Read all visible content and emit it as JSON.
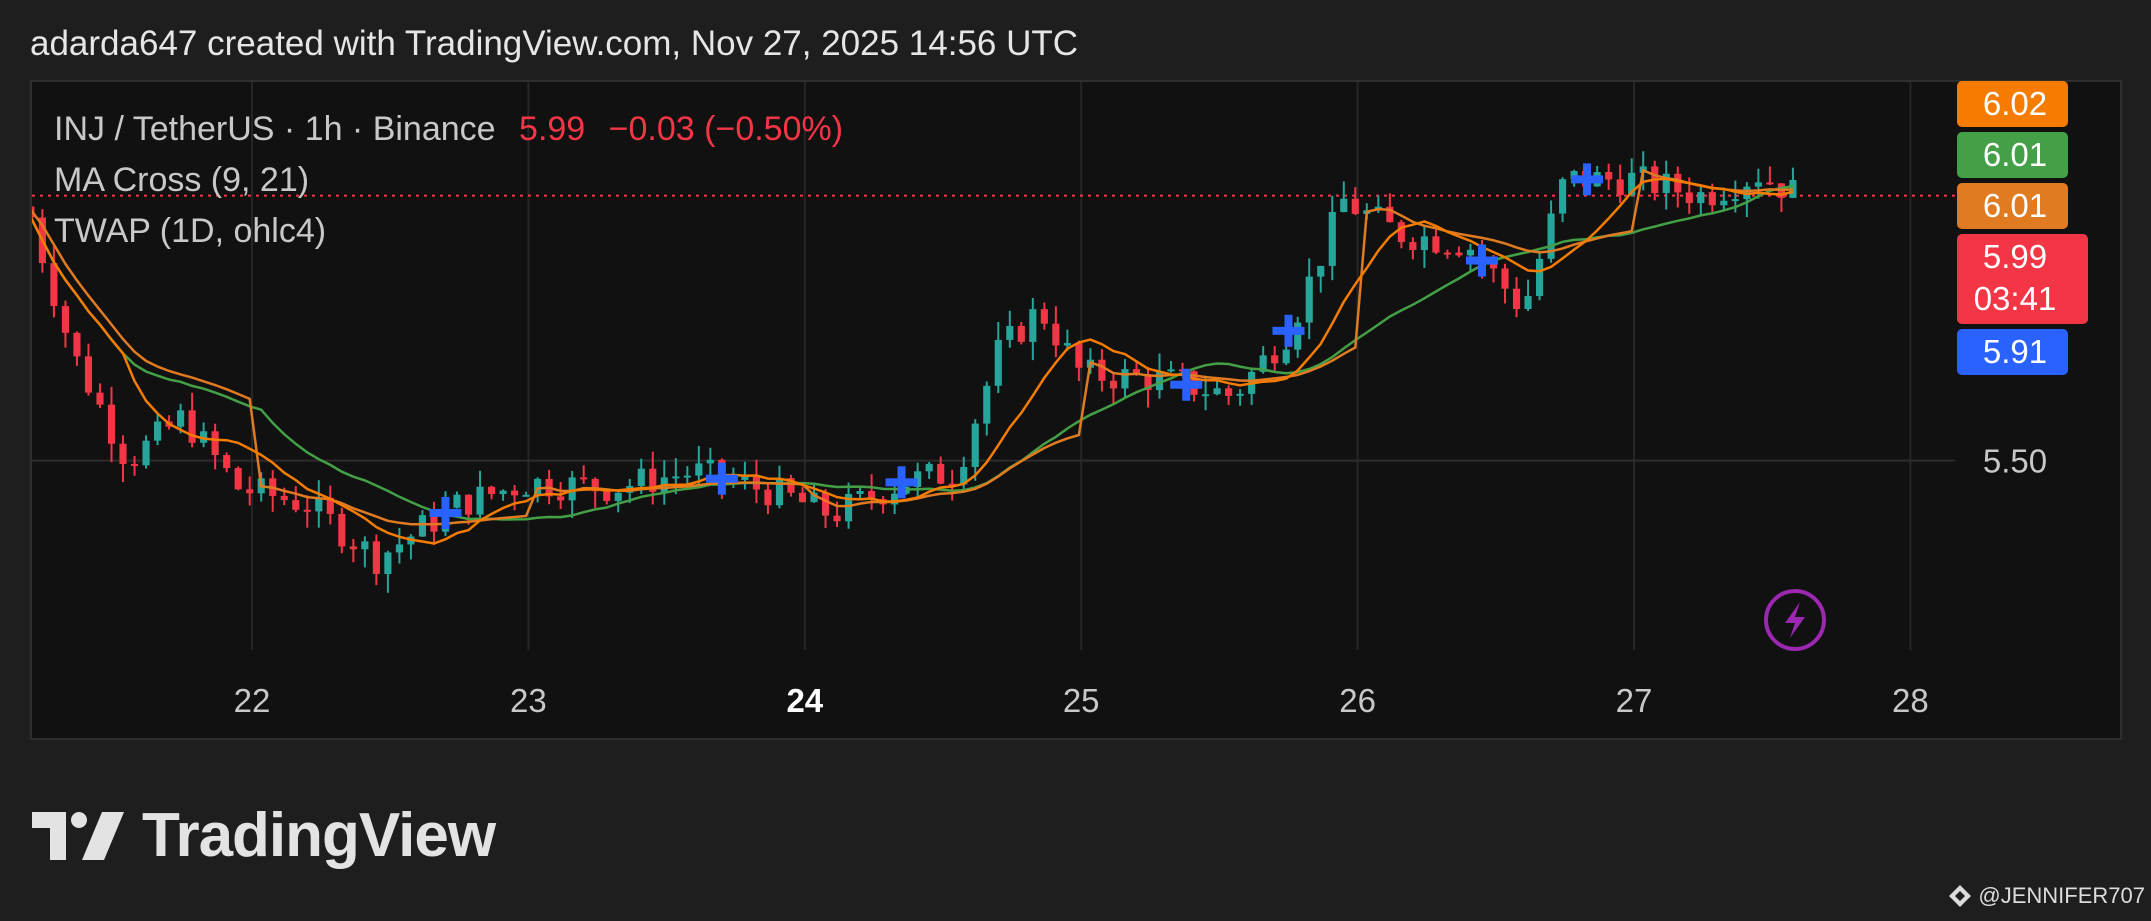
{
  "header": {
    "text": "adarda647 created with TradingView.com, Nov 27, 2025 14:56 UTC"
  },
  "legend": {
    "symbol": "INJ / TetherUS · 1h · Binance",
    "last_price": "5.99",
    "change": "−0.03 (−0.50%)",
    "indicator1": "MA Cross (9, 21)",
    "indicator2": "TWAP (1D, ohlc4)"
  },
  "price_tags": [
    {
      "text": "6.02",
      "color": "#f57c00",
      "value": 6.02
    },
    {
      "text": "6.01",
      "color": "#43a047",
      "value": 6.01
    },
    {
      "text": "6.01",
      "color": "#e07b22",
      "value": 6.01
    },
    {
      "text": "5.99",
      "sub": "03:41",
      "color": "#f23645",
      "value": 5.99
    },
    {
      "text": "5.91",
      "color": "#2962ff",
      "value": 5.91
    }
  ],
  "brand": {
    "name": "TradingView"
  },
  "credit": {
    "text": "@JENNIFER707"
  },
  "colors": {
    "up": "#26a69a",
    "down": "#f23645",
    "ma_fast": "#f57c00",
    "ma_slow": "#43a047",
    "twap": "#e07b22",
    "cross": "#2962ff",
    "flash": "#9c27b0"
  },
  "chart_data": {
    "type": "candlestick",
    "x_ticks": [
      "22",
      "23",
      "24",
      "25",
      "26",
      "27",
      "28"
    ],
    "x_tick_bold": "24",
    "y_ticks": [
      {
        "value": 5.5,
        "label": "5.50"
      }
    ],
    "ylim": [
      5.15,
      6.2
    ],
    "last_price_line": 5.99,
    "grid": true,
    "series": [
      {
        "name": "INJ / TetherUS · 1h · Binance",
        "kind": "ohlc"
      },
      {
        "name": "MA Cross (9, 21)",
        "kind": "lines",
        "lines": [
          "fast",
          "slow"
        ]
      },
      {
        "name": "TWAP (1D, ohlc4)",
        "kind": "line"
      }
    ],
    "day_anchors": [
      {
        "day": 21.2,
        "close": 5.95
      },
      {
        "day": 21.35,
        "close": 5.7
      },
      {
        "day": 21.55,
        "close": 5.5
      },
      {
        "day": 21.75,
        "close": 5.58
      },
      {
        "day": 21.95,
        "close": 5.45
      },
      {
        "day": 22.2,
        "close": 5.42
      },
      {
        "day": 22.45,
        "close": 5.32
      },
      {
        "day": 22.75,
        "close": 5.42
      },
      {
        "day": 23.0,
        "close": 5.46
      },
      {
        "day": 23.3,
        "close": 5.45
      },
      {
        "day": 23.6,
        "close": 5.48
      },
      {
        "day": 23.9,
        "close": 5.44
      },
      {
        "day": 24.1,
        "close": 5.4
      },
      {
        "day": 24.35,
        "close": 5.46
      },
      {
        "day": 24.55,
        "close": 5.48
      },
      {
        "day": 24.7,
        "close": 5.7
      },
      {
        "day": 24.85,
        "close": 5.78
      },
      {
        "day": 25.0,
        "close": 5.66
      },
      {
        "day": 25.3,
        "close": 5.65
      },
      {
        "day": 25.55,
        "close": 5.62
      },
      {
        "day": 25.75,
        "close": 5.74
      },
      {
        "day": 25.95,
        "close": 5.98
      },
      {
        "day": 26.15,
        "close": 5.92
      },
      {
        "day": 26.4,
        "close": 5.9
      },
      {
        "day": 26.6,
        "close": 5.78
      },
      {
        "day": 26.75,
        "close": 6.02
      },
      {
        "day": 27.0,
        "close": 6.02
      },
      {
        "day": 27.25,
        "close": 5.99
      },
      {
        "day": 27.45,
        "close": 6.03
      },
      {
        "day": 27.6,
        "close": 5.99
      }
    ],
    "cross_markers": [
      22.7,
      23.7,
      24.35,
      25.38,
      25.75,
      26.45,
      26.83
    ]
  }
}
